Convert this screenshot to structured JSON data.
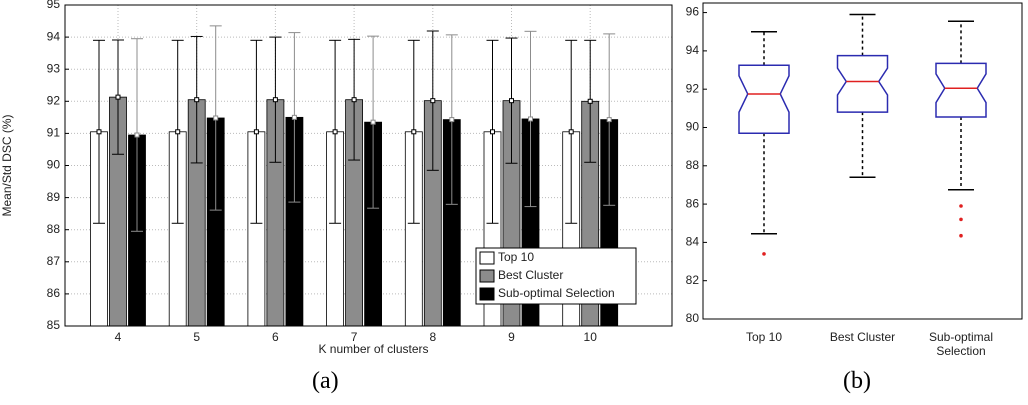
{
  "chart_data": [
    {
      "type": "bar",
      "caption": "(a)",
      "x_label": "K number of clusters",
      "y_label": "Mean/Std DSC (%)",
      "categories": [
        "4",
        "5",
        "6",
        "7",
        "8",
        "9",
        "10"
      ],
      "series": [
        {
          "name": "Top 10",
          "color": "#ffffff",
          "error_color": "#000000",
          "values": [
            91.05,
            91.05,
            91.05,
            91.05,
            91.05,
            91.05,
            91.05
          ],
          "errors": [
            2.85,
            2.85,
            2.85,
            2.85,
            2.85,
            2.85,
            2.85
          ]
        },
        {
          "name": "Best Cluster",
          "color": "#8c8c8c",
          "error_color": "#000000",
          "values": [
            92.13,
            92.05,
            92.05,
            92.05,
            92.02,
            92.02,
            92.0
          ],
          "errors": [
            1.78,
            1.97,
            1.95,
            1.88,
            2.17,
            1.95,
            1.9
          ]
        },
        {
          "name": "Sub-optimal Selection",
          "color": "#000000",
          "error_color": "#8c8c8c",
          "values": [
            90.95,
            91.48,
            91.5,
            91.35,
            91.43,
            91.45,
            91.43
          ],
          "errors": [
            3.0,
            2.87,
            2.64,
            2.68,
            2.64,
            2.73,
            2.67
          ]
        }
      ],
      "ylim": [
        85,
        95
      ],
      "yticks": [
        85,
        86,
        87,
        88,
        89,
        90,
        91,
        92,
        93,
        94,
        95
      ],
      "grid": true,
      "legend": "lower right"
    },
    {
      "type": "box",
      "caption": "(b)",
      "categories": [
        "Top 10",
        "Best Cluster",
        "Sub-optimal Selection"
      ],
      "box_color": "#2b2bb0",
      "median_color": "#e02020",
      "flier_color": "#e02020",
      "boxes": [
        {
          "whislo": 84.45,
          "q1": 89.7,
          "med": 91.75,
          "q3": 93.25,
          "whishi": 95.0,
          "notch": [
            90.8,
            92.7
          ],
          "fliers": [
            83.4
          ]
        },
        {
          "whislo": 87.4,
          "q1": 90.8,
          "med": 92.4,
          "q3": 93.75,
          "whishi": 95.9,
          "notch": [
            91.7,
            93.1
          ],
          "fliers": []
        },
        {
          "whislo": 86.75,
          "q1": 90.55,
          "med": 92.05,
          "q3": 93.35,
          "whishi": 95.55,
          "notch": [
            91.3,
            92.8
          ],
          "fliers": [
            85.9,
            85.2,
            84.35
          ]
        }
      ],
      "ylim": [
        80,
        96.5
      ],
      "yticks": [
        80,
        82,
        84,
        86,
        88,
        90,
        92,
        94,
        96
      ]
    }
  ]
}
